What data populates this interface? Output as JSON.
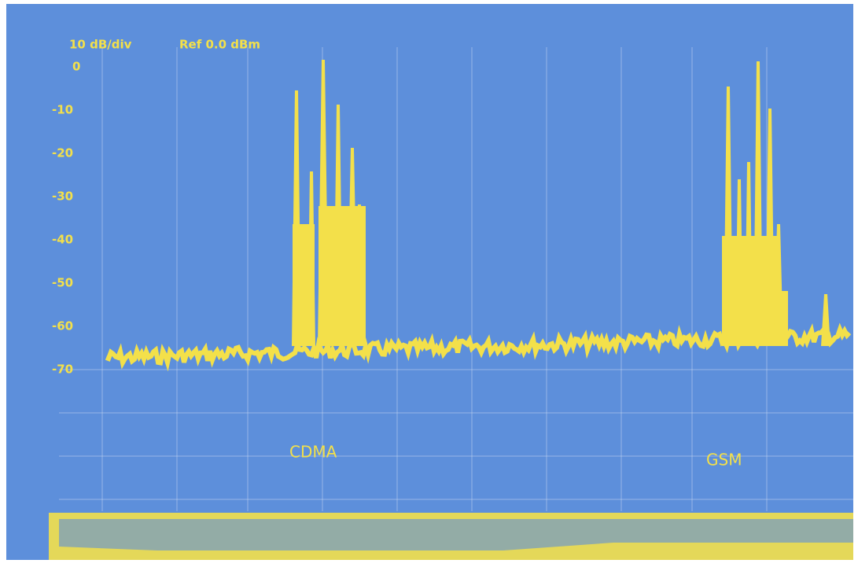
{
  "screen": {
    "header": {
      "scale": "10 dB/div",
      "reference": "Ref 0.0 dBm"
    },
    "y_labels": [
      "0",
      "-10",
      "-20",
      "-30",
      "-40",
      "-50",
      "-60",
      "-70"
    ],
    "annotations": [
      "CDMA",
      "GSM"
    ]
  }
}
